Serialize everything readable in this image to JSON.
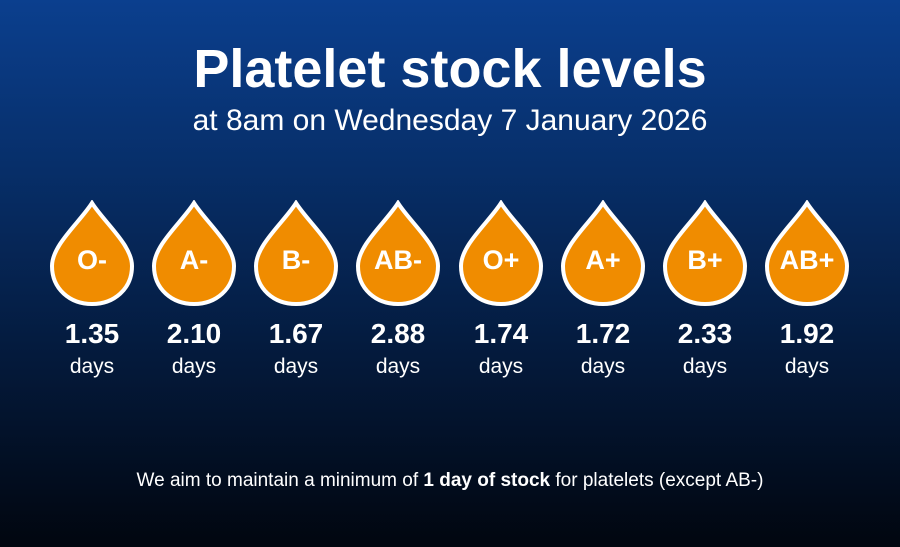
{
  "header": {
    "title": "Platelet stock levels",
    "subtitle": "at 8am on Wednesday 7 January 2026"
  },
  "colors": {
    "drop_fill": "#f08c00",
    "drop_outline": "#ffffff"
  },
  "drop_icon": "blood-drop-icon",
  "groups": [
    {
      "label": "O-",
      "value": "1.35",
      "unit": "days"
    },
    {
      "label": "A-",
      "value": "2.10",
      "unit": "days"
    },
    {
      "label": "B-",
      "value": "1.67",
      "unit": "days"
    },
    {
      "label": "AB-",
      "value": "2.88",
      "unit": "days"
    },
    {
      "label": "O+",
      "value": "1.74",
      "unit": "days"
    },
    {
      "label": "A+",
      "value": "1.72",
      "unit": "days"
    },
    {
      "label": "B+",
      "value": "2.33",
      "unit": "days"
    },
    {
      "label": "AB+",
      "value": "1.92",
      "unit": "days"
    }
  ],
  "footnote": {
    "before": "We aim to maintain a minimum of ",
    "bold": "1 day of stock",
    "after": " for platelets (except AB-)"
  }
}
